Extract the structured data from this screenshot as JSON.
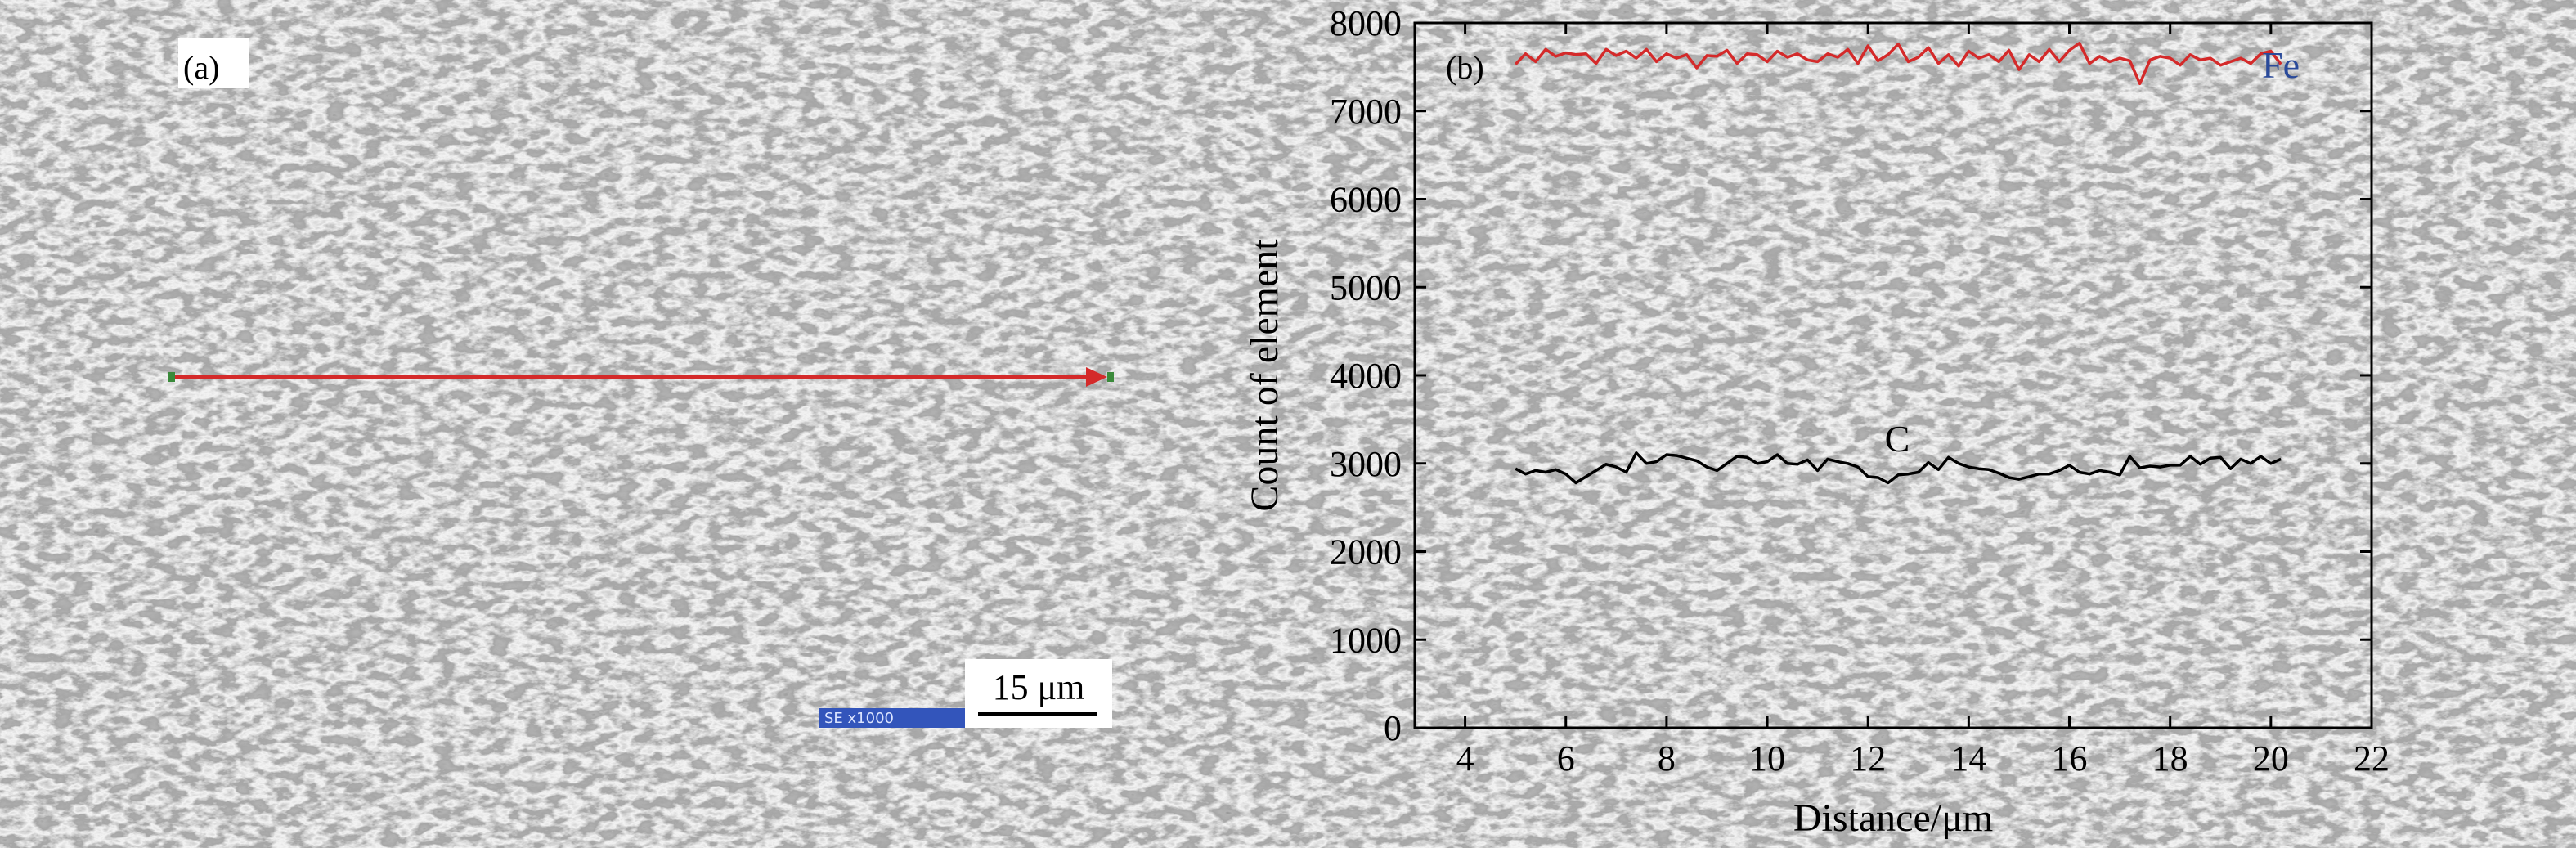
{
  "panel_a": {
    "label": "(a)",
    "scale_bar_text": "15 μm",
    "detector_text": "SE  x1000",
    "line_scan_color": "#d42a2a",
    "info_bar_color": "#3355bb"
  },
  "chart_data": {
    "type": "line",
    "panel_label": "(b)",
    "xlabel": "Distance/μm",
    "ylabel": "Count of element",
    "xlim": [
      3,
      22
    ],
    "ylim": [
      0,
      8000
    ],
    "xticks": [
      4,
      6,
      8,
      10,
      12,
      14,
      16,
      18,
      20,
      22
    ],
    "yticks": [
      0,
      1000,
      2000,
      3000,
      4000,
      5000,
      6000,
      7000,
      8000
    ],
    "grid": false,
    "series": [
      {
        "name": "Fe",
        "color": "#d42a2a",
        "label_color": "#2a4a9a",
        "points": [
          [
            5.0,
            7530
          ],
          [
            5.2,
            7650
          ],
          [
            5.4,
            7560
          ],
          [
            5.6,
            7700
          ],
          [
            5.8,
            7620
          ],
          [
            6.0,
            7660
          ],
          [
            6.2,
            7640
          ],
          [
            6.4,
            7650
          ],
          [
            6.6,
            7540
          ],
          [
            6.8,
            7700
          ],
          [
            7.0,
            7630
          ],
          [
            7.2,
            7680
          ],
          [
            7.4,
            7600
          ],
          [
            7.6,
            7700
          ],
          [
            7.8,
            7560
          ],
          [
            8.0,
            7650
          ],
          [
            8.2,
            7600
          ],
          [
            8.4,
            7640
          ],
          [
            8.6,
            7490
          ],
          [
            8.8,
            7630
          ],
          [
            9.0,
            7620
          ],
          [
            9.2,
            7690
          ],
          [
            9.4,
            7540
          ],
          [
            9.6,
            7650
          ],
          [
            9.8,
            7640
          ],
          [
            10.0,
            7560
          ],
          [
            10.2,
            7680
          ],
          [
            10.4,
            7610
          ],
          [
            10.6,
            7650
          ],
          [
            10.8,
            7580
          ],
          [
            11.0,
            7560
          ],
          [
            11.2,
            7650
          ],
          [
            11.4,
            7610
          ],
          [
            11.6,
            7700
          ],
          [
            11.8,
            7540
          ],
          [
            12.0,
            7740
          ],
          [
            12.2,
            7570
          ],
          [
            12.4,
            7640
          ],
          [
            12.6,
            7760
          ],
          [
            12.8,
            7560
          ],
          [
            13.0,
            7610
          ],
          [
            13.2,
            7720
          ],
          [
            13.4,
            7540
          ],
          [
            13.6,
            7640
          ],
          [
            13.8,
            7510
          ],
          [
            14.0,
            7680
          ],
          [
            14.2,
            7600
          ],
          [
            14.4,
            7640
          ],
          [
            14.6,
            7560
          ],
          [
            14.8,
            7690
          ],
          [
            15.0,
            7470
          ],
          [
            15.2,
            7640
          ],
          [
            15.4,
            7560
          ],
          [
            15.6,
            7700
          ],
          [
            15.8,
            7560
          ],
          [
            16.0,
            7690
          ],
          [
            16.2,
            7770
          ],
          [
            16.4,
            7540
          ],
          [
            16.6,
            7620
          ],
          [
            16.8,
            7560
          ],
          [
            17.0,
            7600
          ],
          [
            17.2,
            7570
          ],
          [
            17.4,
            7310
          ],
          [
            17.6,
            7580
          ],
          [
            17.8,
            7620
          ],
          [
            18.0,
            7600
          ],
          [
            18.2,
            7520
          ],
          [
            18.4,
            7640
          ],
          [
            18.6,
            7580
          ],
          [
            18.8,
            7600
          ],
          [
            19.0,
            7520
          ],
          [
            19.2,
            7560
          ],
          [
            19.4,
            7600
          ],
          [
            19.6,
            7540
          ],
          [
            19.8,
            7650
          ],
          [
            20.0,
            7680
          ],
          [
            20.2,
            7530
          ]
        ]
      },
      {
        "name": "C",
        "color": "#000000",
        "label_color": "#000000",
        "points": [
          [
            5.0,
            2940
          ],
          [
            5.2,
            2880
          ],
          [
            5.4,
            2920
          ],
          [
            5.6,
            2900
          ],
          [
            5.8,
            2930
          ],
          [
            6.0,
            2880
          ],
          [
            6.2,
            2780
          ],
          [
            6.4,
            2850
          ],
          [
            6.6,
            2920
          ],
          [
            6.8,
            2990
          ],
          [
            7.0,
            2960
          ],
          [
            7.2,
            2900
          ],
          [
            7.4,
            3120
          ],
          [
            7.6,
            3000
          ],
          [
            7.8,
            3020
          ],
          [
            8.0,
            3100
          ],
          [
            8.2,
            3090
          ],
          [
            8.4,
            3060
          ],
          [
            8.6,
            3030
          ],
          [
            8.8,
            2960
          ],
          [
            9.0,
            2920
          ],
          [
            9.2,
            3000
          ],
          [
            9.4,
            3080
          ],
          [
            9.6,
            3070
          ],
          [
            9.8,
            3000
          ],
          [
            10.0,
            3020
          ],
          [
            10.2,
            3100
          ],
          [
            10.4,
            3000
          ],
          [
            10.6,
            2990
          ],
          [
            10.8,
            3040
          ],
          [
            11.0,
            2920
          ],
          [
            11.2,
            3050
          ],
          [
            11.4,
            3020
          ],
          [
            11.6,
            3000
          ],
          [
            11.8,
            2960
          ],
          [
            12.0,
            2850
          ],
          [
            12.2,
            2840
          ],
          [
            12.4,
            2780
          ],
          [
            12.6,
            2870
          ],
          [
            12.8,
            2880
          ],
          [
            13.0,
            2900
          ],
          [
            13.2,
            3010
          ],
          [
            13.4,
            2930
          ],
          [
            13.6,
            3070
          ],
          [
            13.8,
            3000
          ],
          [
            14.0,
            2960
          ],
          [
            14.2,
            2940
          ],
          [
            14.4,
            2930
          ],
          [
            14.6,
            2890
          ],
          [
            14.8,
            2840
          ],
          [
            15.0,
            2820
          ],
          [
            15.2,
            2850
          ],
          [
            15.4,
            2880
          ],
          [
            15.6,
            2880
          ],
          [
            15.8,
            2920
          ],
          [
            16.0,
            2980
          ],
          [
            16.2,
            2900
          ],
          [
            16.4,
            2880
          ],
          [
            16.6,
            2920
          ],
          [
            16.8,
            2900
          ],
          [
            17.0,
            2870
          ],
          [
            17.2,
            3080
          ],
          [
            17.4,
            2950
          ],
          [
            17.6,
            2970
          ],
          [
            17.8,
            2960
          ],
          [
            18.0,
            2980
          ],
          [
            18.2,
            2980
          ],
          [
            18.4,
            3080
          ],
          [
            18.6,
            2990
          ],
          [
            18.8,
            3060
          ],
          [
            19.0,
            3070
          ],
          [
            19.2,
            2940
          ],
          [
            19.4,
            3050
          ],
          [
            19.6,
            3000
          ],
          [
            19.8,
            3080
          ],
          [
            20.0,
            3000
          ],
          [
            20.2,
            3050
          ]
        ]
      }
    ]
  }
}
